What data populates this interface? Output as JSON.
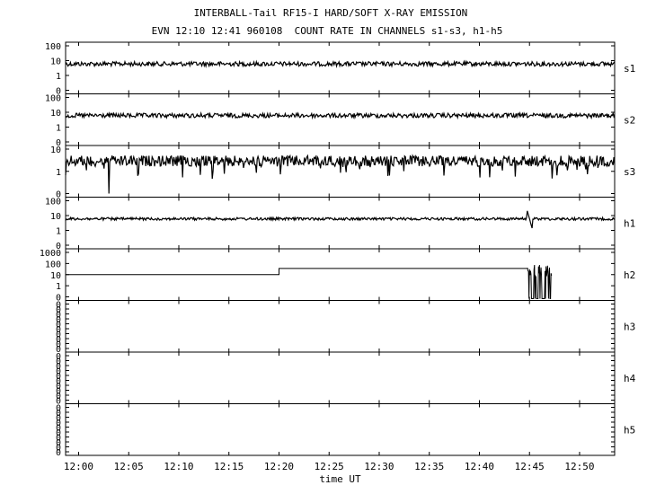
{
  "header": {
    "title": "INTERBALL-Tail RF15-I HARD/SOFT X-RAY EMISSION",
    "subtitle": "EVN 12:10 12:41 960108  COUNT RATE IN CHANNELS s1-s3, h1-h5"
  },
  "chart_data": {
    "type": "line",
    "xlabel": "time UT",
    "x_ticks": [
      "12:00",
      "12:05",
      "12:10",
      "12:15",
      "12:20",
      "12:25",
      "12:30",
      "12:35",
      "12:40",
      "12:45",
      "12:50"
    ],
    "x_range_minutes": [
      -1.3,
      53.5
    ],
    "y_scale": "log",
    "grid": false,
    "panels": [
      {
        "name": "s1",
        "ticks": [
          "100",
          "10",
          "1",
          "0"
        ],
        "level": 12,
        "noise": "moderate",
        "description_points": [
          [
            0,
            12
          ],
          [
            25,
            14
          ],
          [
            50,
            13
          ]
        ]
      },
      {
        "name": "s2",
        "ticks": [
          "100",
          "10",
          "1",
          "0"
        ],
        "level": 9,
        "noise": "moderate",
        "description_points": [
          [
            0,
            9
          ],
          [
            25,
            11
          ],
          [
            50,
            9
          ]
        ]
      },
      {
        "name": "s3",
        "ticks": [
          "10",
          "1",
          "0"
        ],
        "level": 3,
        "noise": "high",
        "description_points": [
          [
            0,
            3
          ],
          [
            25,
            3
          ],
          [
            50,
            3
          ]
        ]
      },
      {
        "name": "h1",
        "ticks": [
          "100",
          "10",
          "1",
          "0"
        ],
        "level": 12,
        "noise": "low",
        "description_points": [
          [
            0,
            12
          ],
          [
            45,
            30
          ],
          [
            46,
            8
          ],
          [
            50,
            12
          ]
        ]
      },
      {
        "name": "h2",
        "ticks": [
          "1000",
          "100",
          "10",
          "1",
          "0"
        ],
        "level": 15,
        "noise": "step",
        "description_points": [
          [
            -1.3,
            15
          ],
          [
            20,
            15
          ],
          [
            20,
            30
          ],
          [
            44.8,
            30
          ],
          [
            45,
            90
          ],
          [
            47,
            30
          ]
        ]
      },
      {
        "name": "h3",
        "ticks": [
          "0",
          "0",
          "0",
          "0",
          "0",
          "0",
          "0",
          "0",
          "0",
          "0"
        ],
        "level": null
      },
      {
        "name": "h4",
        "ticks": [
          "0",
          "0",
          "0",
          "0",
          "0",
          "0",
          "0",
          "0",
          "0",
          "0"
        ],
        "level": null
      },
      {
        "name": "h5",
        "ticks": [
          "0",
          "0",
          "0",
          "0",
          "0",
          "0",
          "0",
          "0",
          "0",
          "0"
        ],
        "level": null
      }
    ]
  }
}
